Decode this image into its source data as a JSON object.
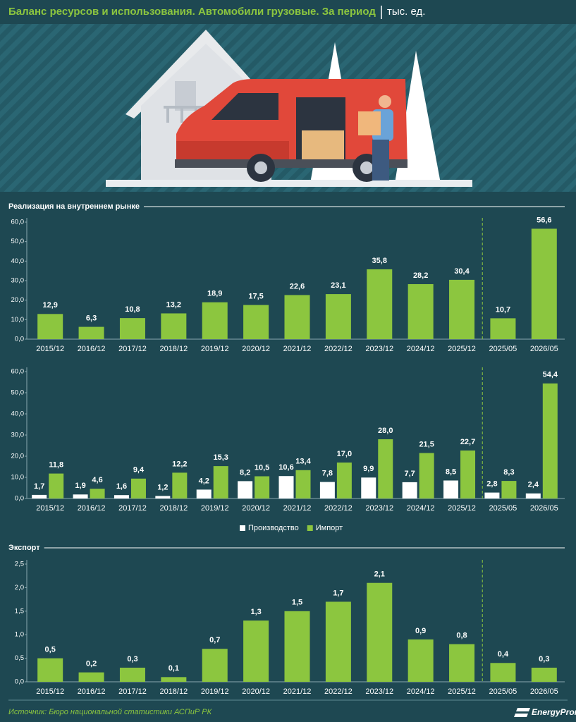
{
  "header": {
    "title": "Баланс ресурсов и использования. Автомобили грузовые. За период",
    "unit": "тыс. ед."
  },
  "chart_data": [
    {
      "type": "bar",
      "title": "Реализация на внутреннем рынке",
      "categories": [
        "2015/12",
        "2016/12",
        "2017/12",
        "2018/12",
        "2019/12",
        "2020/12",
        "2021/12",
        "2022/12",
        "2023/12",
        "2024/12",
        "2025/12",
        "2025/05",
        "2026/05"
      ],
      "values": [
        12.9,
        6.3,
        10.8,
        13.2,
        18.9,
        17.5,
        22.6,
        23.1,
        35.8,
        28.2,
        30.4,
        10.7,
        56.6
      ],
      "value_labels": [
        "12,9",
        "6,3",
        "10,8",
        "13,2",
        "18,9",
        "17,5",
        "22,6",
        "23,1",
        "35,8",
        "28,2",
        "30,4",
        "10,7",
        "56,6"
      ],
      "color": "#8cc63f",
      "ylim": [
        0,
        60
      ],
      "yticks": [
        {
          "value": 0,
          "label": "0,0"
        },
        {
          "value": 10,
          "label": "10,0"
        },
        {
          "value": 20,
          "label": "20,0"
        },
        {
          "value": 30,
          "label": "30,0"
        },
        {
          "value": 40,
          "label": "40,0"
        },
        {
          "value": 50,
          "label": "50,0"
        },
        {
          "value": 60,
          "label": "60,0"
        }
      ],
      "grid": false
    },
    {
      "type": "bar",
      "categories": [
        "2015/12",
        "2016/12",
        "2017/12",
        "2018/12",
        "2019/12",
        "2020/12",
        "2021/12",
        "2022/12",
        "2023/12",
        "2024/12",
        "2025/12",
        "2025/05",
        "2026/05"
      ],
      "series": [
        {
          "name": "Производство",
          "color": "#ffffff",
          "values": [
            1.7,
            1.9,
            1.6,
            1.2,
            4.2,
            8.2,
            10.6,
            7.8,
            9.9,
            7.7,
            8.5,
            2.8,
            2.4
          ],
          "value_labels": [
            "1,7",
            "1,9",
            "1,6",
            "1,2",
            "4,2",
            "8,2",
            "10,6",
            "7,8",
            "9,9",
            "7,7",
            "8,5",
            "2,8",
            "2,4"
          ]
        },
        {
          "name": "Импорт",
          "color": "#8cc63f",
          "values": [
            11.8,
            4.6,
            9.4,
            12.2,
            15.3,
            10.5,
            13.4,
            17.0,
            28.0,
            21.5,
            22.7,
            8.3,
            54.4
          ],
          "value_labels": [
            "11,8",
            "4,6",
            "9,4",
            "12,2",
            "15,3",
            "10,5",
            "13,4",
            "17,0",
            "28,0",
            "21,5",
            "22,7",
            "8,3",
            "54,4"
          ]
        }
      ],
      "ylim": [
        0,
        60
      ],
      "yticks": [
        {
          "value": 0,
          "label": "0,0"
        },
        {
          "value": 10,
          "label": "10,0"
        },
        {
          "value": 20,
          "label": "20,0"
        },
        {
          "value": 30,
          "label": "30,0"
        },
        {
          "value": 40,
          "label": "40,0"
        },
        {
          "value": 50,
          "label": "50,0"
        },
        {
          "value": 60,
          "label": "60,0"
        }
      ],
      "grid": false,
      "legend": "bottom"
    },
    {
      "type": "bar",
      "title": "Экспорт",
      "categories": [
        "2015/12",
        "2016/12",
        "2017/12",
        "2018/12",
        "2019/12",
        "2020/12",
        "2021/12",
        "2022/12",
        "2023/12",
        "2024/12",
        "2025/12",
        "2025/05",
        "2026/05"
      ],
      "values": [
        0.5,
        0.2,
        0.3,
        0.1,
        0.7,
        1.3,
        1.5,
        1.7,
        2.1,
        0.9,
        0.8,
        0.4,
        0.3
      ],
      "value_labels": [
        "0,5",
        "0,2",
        "0,3",
        "0,1",
        "0,7",
        "1,3",
        "1,5",
        "1,7",
        "2,1",
        "0,9",
        "0,8",
        "0,4",
        "0,3"
      ],
      "color": "#8cc63f",
      "ylim": [
        0,
        2.5
      ],
      "yticks": [
        {
          "value": 0,
          "label": "0,0"
        },
        {
          "value": 0.5,
          "label": "0,5"
        },
        {
          "value": 1,
          "label": "1,0"
        },
        {
          "value": 1.5,
          "label": "1,5"
        },
        {
          "value": 2,
          "label": "2,0"
        },
        {
          "value": 2.5,
          "label": "2,5"
        }
      ],
      "grid": false
    }
  ],
  "footer": {
    "source": "Источник: Бюро национальной статистики АСПиР РК",
    "logo": "EnergyProm"
  }
}
